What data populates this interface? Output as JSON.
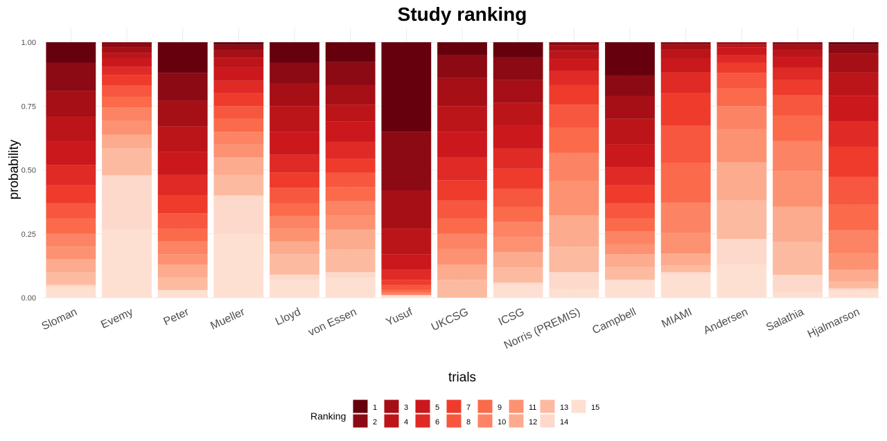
{
  "chart_data": {
    "type": "bar",
    "stacked": true,
    "title": "Study ranking",
    "xlabel": "trials",
    "ylabel": "probability",
    "ylim": [
      0,
      1
    ],
    "yticks": [
      "0.00",
      "0.25",
      "0.50",
      "0.75",
      "1.00"
    ],
    "grid": true,
    "legend_position": "bottom",
    "legend_title": "Ranking",
    "categories": [
      "Sloman",
      "Evemy",
      "Peter",
      "Mueller",
      "Lloyd",
      "von Essen",
      "Yusuf",
      "UKCSG",
      "ICSG",
      "Norris (PREMIS)",
      "Campbell",
      "MIAMI",
      "Andersen",
      "Salathia",
      "Hjalmarson"
    ],
    "series": [
      {
        "name": "1",
        "color": "#67000d",
        "values": [
          0.08,
          0.0,
          0.12,
          0.01,
          0.08,
          0.07,
          0.35,
          0.05,
          0.06,
          0.0,
          0.13,
          0.0,
          0.0,
          0.0,
          0.01
        ]
      },
      {
        "name": "2",
        "color": "#8c0a13",
        "values": [
          0.11,
          0.02,
          0.11,
          0.02,
          0.08,
          0.08,
          0.23,
          0.09,
          0.09,
          0.01,
          0.08,
          0.01,
          0.0,
          0.01,
          0.04
        ]
      },
      {
        "name": "3",
        "color": "#a50f15",
        "values": [
          0.1,
          0.02,
          0.1,
          0.03,
          0.09,
          0.07,
          0.15,
          0.11,
          0.09,
          0.02,
          0.09,
          0.02,
          0.01,
          0.02,
          0.08
        ]
      },
      {
        "name": "4",
        "color": "#bb151a",
        "values": [
          0.1,
          0.02,
          0.1,
          0.04,
          0.1,
          0.06,
          0.1,
          0.1,
          0.09,
          0.03,
          0.1,
          0.04,
          0.01,
          0.03,
          0.1
        ]
      },
      {
        "name": "5",
        "color": "#cb181d",
        "values": [
          0.09,
          0.03,
          0.09,
          0.05,
          0.09,
          0.07,
          0.06,
          0.1,
          0.09,
          0.04,
          0.09,
          0.06,
          0.03,
          0.04,
          0.11
        ]
      },
      {
        "name": "6",
        "color": "#df2a26",
        "values": [
          0.08,
          0.03,
          0.08,
          0.05,
          0.07,
          0.06,
          0.04,
          0.09,
          0.08,
          0.05,
          0.07,
          0.09,
          0.03,
          0.05,
          0.11
        ]
      },
      {
        "name": "7",
        "color": "#ef3b2c",
        "values": [
          0.07,
          0.04,
          0.07,
          0.05,
          0.06,
          0.05,
          0.02,
          0.08,
          0.08,
          0.07,
          0.07,
          0.14,
          0.04,
          0.06,
          0.13
        ]
      },
      {
        "name": "8",
        "color": "#f7573e",
        "values": [
          0.06,
          0.04,
          0.06,
          0.05,
          0.06,
          0.05,
          0.02,
          0.07,
          0.07,
          0.08,
          0.06,
          0.16,
          0.06,
          0.08,
          0.12
        ]
      },
      {
        "name": "9",
        "color": "#fb6a4a",
        "values": [
          0.06,
          0.04,
          0.05,
          0.05,
          0.05,
          0.05,
          0.01,
          0.06,
          0.06,
          0.09,
          0.05,
          0.17,
          0.07,
          0.1,
          0.11
        ]
      },
      {
        "name": "10",
        "color": "#fc8465",
        "values": [
          0.05,
          0.05,
          0.05,
          0.05,
          0.05,
          0.05,
          0.01,
          0.06,
          0.06,
          0.1,
          0.05,
          0.13,
          0.09,
          0.12,
          0.1
        ]
      },
      {
        "name": "11",
        "color": "#fc9272",
        "values": [
          0.05,
          0.05,
          0.04,
          0.05,
          0.05,
          0.05,
          0.0,
          0.06,
          0.06,
          0.12,
          0.04,
          0.09,
          0.13,
          0.14,
          0.07
        ]
      },
      {
        "name": "12",
        "color": "#fcab8f",
        "values": [
          0.05,
          0.05,
          0.05,
          0.07,
          0.05,
          0.07,
          0.0,
          0.06,
          0.06,
          0.11,
          0.05,
          0.05,
          0.15,
          0.14,
          0.05
        ]
      },
      {
        "name": "13",
        "color": "#fcbba1",
        "values": [
          0.05,
          0.1,
          0.05,
          0.08,
          0.08,
          0.08,
          0.0,
          0.07,
          0.06,
          0.09,
          0.05,
          0.03,
          0.15,
          0.13,
          0.03
        ]
      },
      {
        "name": "14",
        "color": "#fdd9cb",
        "values": [
          0.01,
          0.2,
          0.0,
          0.15,
          0.02,
          0.02,
          0.0,
          0.0,
          0.01,
          0.06,
          0.0,
          0.01,
          0.1,
          0.07,
          0.01
        ]
      },
      {
        "name": "15",
        "color": "#fee0d2",
        "values": [
          0.04,
          0.25,
          0.03,
          0.25,
          0.07,
          0.07,
          0.01,
          0.0,
          0.05,
          0.03,
          0.07,
          0.1,
          0.13,
          0.02,
          0.03
        ]
      }
    ]
  }
}
